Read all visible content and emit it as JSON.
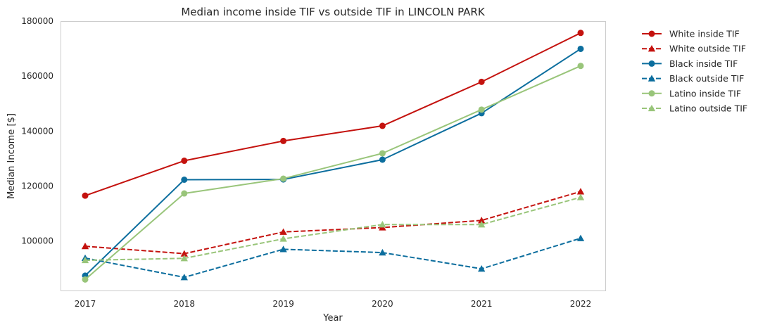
{
  "chart_data": {
    "type": "line",
    "title": "Median income inside TIF vs outside TIF in LINCOLN PARK",
    "xlabel": "Year",
    "ylabel": "Median Income [$]",
    "x": [
      2017,
      2018,
      2019,
      2020,
      2021,
      2022
    ],
    "x_ticks": [
      "2017",
      "2018",
      "2019",
      "2020",
      "2021",
      "2022"
    ],
    "ylim": [
      82000,
      180000
    ],
    "y_ticks": [
      100000,
      120000,
      140000,
      160000,
      180000
    ],
    "y_tick_labels": [
      "100000",
      "120000",
      "140000",
      "160000",
      "180000"
    ],
    "grid": false,
    "legend_position": "outside-right",
    "series": [
      {
        "name": "White inside TIF",
        "color": "#c4120e",
        "style": "solid",
        "marker": "circle",
        "values": [
          116500,
          129200,
          136400,
          141900,
          157900,
          175700
        ]
      },
      {
        "name": "White outside TIF",
        "color": "#c4120e",
        "style": "dashed",
        "marker": "triangle",
        "values": [
          98100,
          95400,
          103300,
          104900,
          107500,
          118000
        ]
      },
      {
        "name": "Black inside TIF",
        "color": "#0c6e9e",
        "style": "solid",
        "marker": "circle",
        "values": [
          87400,
          122300,
          122400,
          129600,
          146500,
          169900
        ]
      },
      {
        "name": "Black outside TIF",
        "color": "#0c6e9e",
        "style": "dashed",
        "marker": "triangle",
        "values": [
          93800,
          86800,
          97000,
          95800,
          89900,
          101000
        ]
      },
      {
        "name": "Latino inside TIF",
        "color": "#99c57a",
        "style": "solid",
        "marker": "circle",
        "values": [
          86000,
          117300,
          122700,
          131900,
          147800,
          163700
        ]
      },
      {
        "name": "Latino outside TIF",
        "color": "#99c57a",
        "style": "dashed",
        "marker": "triangle",
        "values": [
          93000,
          93700,
          100800,
          106000,
          106000,
          115900
        ]
      }
    ]
  }
}
